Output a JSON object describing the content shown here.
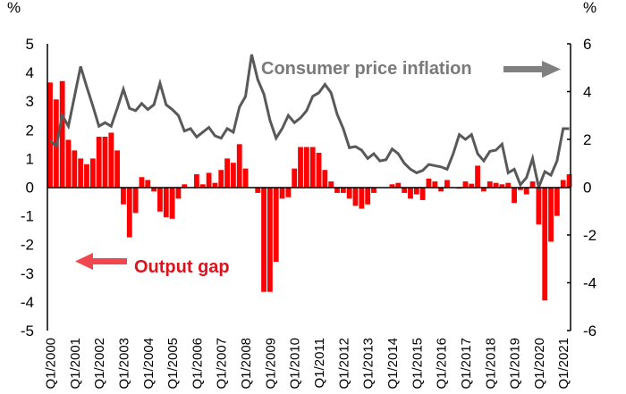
{
  "chart_data": {
    "type": "bar+line",
    "title": "",
    "left_axis": {
      "unit": "%",
      "ylim": [
        -5,
        5
      ],
      "ticks": [
        "5",
        "4",
        "3",
        "2",
        "1",
        "0",
        "-1",
        "-2",
        "-3",
        "-4",
        "-5"
      ]
    },
    "right_axis": {
      "unit": "%",
      "ylim": [
        -6,
        6
      ],
      "ticks": [
        "6",
        "4",
        "2",
        "0",
        "-2",
        "-4",
        "-6"
      ]
    },
    "x_tick_labels": [
      "Q1/2000",
      "Q1/2001",
      "Q1/2002",
      "Q1/2003",
      "Q1/2004",
      "Q1/2005",
      "Q1/2006",
      "Q1/2007",
      "Q1/2008",
      "Q1/2009",
      "Q1/2010",
      "Q1/2011",
      "Q1/2012",
      "Q1/2013",
      "Q1/2014",
      "Q1/2015",
      "Q1/2016",
      "Q1/2017",
      "Q1/2018",
      "Q1/2019",
      "Q1/2020",
      "Q1/2021"
    ],
    "annotations": {
      "cpi_label": "Consumer price inflation",
      "gap_label": "Output gap"
    },
    "colors": {
      "bars": "#ff0000",
      "line": "#595959",
      "cpi_text": "#7a7a7a",
      "gap_text": "#e0121b",
      "cpi_arrow": "#808080",
      "gap_arrow": "#f0474f"
    },
    "series": [
      {
        "name": "Output gap",
        "type": "bar",
        "axis": "left",
        "values": [
          3.65,
          3.06,
          3.7,
          1.65,
          1.28,
          1.0,
          0.8,
          1.0,
          1.76,
          1.76,
          1.9,
          1.28,
          -0.6,
          -1.75,
          -0.9,
          0.35,
          0.25,
          -0.15,
          -0.85,
          -1.05,
          -1.1,
          -0.4,
          0.1,
          0.0,
          0.45,
          0.1,
          0.5,
          0.15,
          0.6,
          1.0,
          0.85,
          1.5,
          0.65,
          0.0,
          -0.2,
          -3.65,
          -3.65,
          -2.6,
          -0.4,
          -0.35,
          0.65,
          1.4,
          1.4,
          1.4,
          1.2,
          0.6,
          0.2,
          -0.2,
          -0.2,
          -0.4,
          -0.65,
          -0.75,
          -0.6,
          -0.2,
          0.0,
          0.0,
          0.1,
          0.15,
          -0.2,
          -0.4,
          -0.25,
          -0.45,
          0.3,
          0.2,
          -0.15,
          0.25,
          0.0,
          -0.05,
          0.2,
          0.12,
          0.75,
          -0.15,
          0.2,
          0.15,
          0.1,
          0.15,
          -0.55,
          -0.1,
          -0.25,
          0.2,
          -1.3,
          -3.95,
          -1.9,
          -1.0,
          0.25,
          0.45
        ]
      },
      {
        "name": "Consumer price inflation",
        "type": "line",
        "axis": "right",
        "values": [
          1.95,
          1.7,
          3.0,
          2.55,
          3.8,
          5.05,
          4.2,
          3.4,
          2.55,
          2.7,
          2.55,
          3.3,
          4.1,
          3.3,
          3.2,
          3.5,
          3.25,
          3.45,
          4.35,
          3.45,
          3.25,
          3.0,
          2.35,
          2.45,
          2.1,
          2.3,
          2.5,
          2.15,
          2.05,
          2.45,
          2.3,
          3.35,
          3.8,
          5.55,
          4.5,
          3.9,
          2.8,
          2.05,
          2.45,
          3.0,
          2.7,
          2.9,
          3.2,
          3.8,
          3.95,
          4.3,
          3.95,
          3.05,
          2.45,
          1.65,
          1.7,
          1.55,
          1.2,
          1.4,
          1.1,
          1.15,
          1.6,
          1.4,
          1.0,
          0.75,
          0.6,
          0.7,
          0.95,
          0.9,
          0.85,
          0.75,
          1.4,
          2.2,
          2.0,
          2.2,
          1.4,
          1.1,
          1.5,
          1.55,
          1.8,
          0.6,
          0.75,
          0.1,
          0.4,
          1.2,
          0.0,
          0.65,
          0.5,
          1.1,
          2.45,
          2.45
        ]
      }
    ],
    "grid": false,
    "legend": "inline-annotations"
  }
}
